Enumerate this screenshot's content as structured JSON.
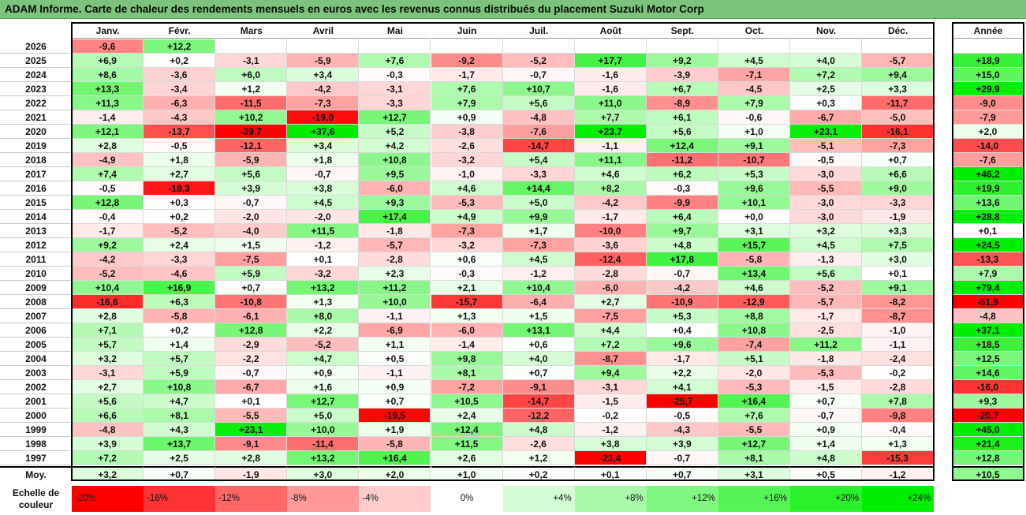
{
  "title": "ADAM Informe. Carte de chaleur des rendements mensuels en euros avec les revenus connus distribués du placement Suzuki Motor Corp",
  "chart_data": {
    "type": "heatmap",
    "months": [
      "Janv.",
      "Févr.",
      "Mars",
      "Avril",
      "Mai",
      "Juin",
      "Juil.",
      "Août",
      "Sept.",
      "Oct.",
      "Nov.",
      "Déc."
    ],
    "year_header": "Année",
    "rows": [
      {
        "year": "2026",
        "values": [
          "-9,6",
          "+12,2",
          null,
          null,
          null,
          null,
          null,
          null,
          null,
          null,
          null,
          null
        ],
        "annual": null
      },
      {
        "year": "2025",
        "values": [
          "+6,9",
          "+0,2",
          "-3,1",
          "-5,9",
          "+7,6",
          "-9,2",
          "-5,2",
          "+17,7",
          "+9,2",
          "+4,5",
          "+4,0",
          "-5,7"
        ],
        "annual": "+18,9"
      },
      {
        "year": "2024",
        "values": [
          "+8,6",
          "-3,6",
          "+6,0",
          "+3,4",
          "-0,3",
          "-1,7",
          "-0,7",
          "-1,6",
          "-3,9",
          "-7,1",
          "+7,2",
          "+9,4"
        ],
        "annual": "+15,0"
      },
      {
        "year": "2023",
        "values": [
          "+13,3",
          "-3,4",
          "+1,2",
          "-4,2",
          "-3,1",
          "+7,6",
          "+10,7",
          "-1,6",
          "+6,7",
          "-4,5",
          "+2,5",
          "+3,3"
        ],
        "annual": "+29,9"
      },
      {
        "year": "2022",
        "values": [
          "+11,3",
          "-6,3",
          "-11,5",
          "-7,3",
          "-3,3",
          "+7,9",
          "+5,6",
          "+11,0",
          "-8,9",
          "+7,9",
          "+0,3",
          "-11,7"
        ],
        "annual": "-9,0"
      },
      {
        "year": "2021",
        "values": [
          "-1,4",
          "-4,3",
          "+10,2",
          "-19,0",
          "+12,7",
          "+0,9",
          "-4,8",
          "+7,7",
          "+6,1",
          "-0,6",
          "-6,7",
          "-5,0"
        ],
        "annual": "-7,9"
      },
      {
        "year": "2020",
        "values": [
          "+12,1",
          "-13,7",
          "-39,7",
          "+37,6",
          "+5,2",
          "-3,8",
          "-7,6",
          "+23,7",
          "+5,6",
          "+1,0",
          "+23,1",
          "-16,1"
        ],
        "annual": "+2,0"
      },
      {
        "year": "2019",
        "values": [
          "+2,8",
          "-0,5",
          "-12,1",
          "+3,4",
          "+4,2",
          "-2,6",
          "-14,7",
          "-1,1",
          "+12,4",
          "+9,1",
          "-5,1",
          "-7,3"
        ],
        "annual": "-14,0"
      },
      {
        "year": "2018",
        "values": [
          "-4,9",
          "+1,8",
          "-5,9",
          "+1,8",
          "+10,8",
          "-3,2",
          "+5,4",
          "+11,1",
          "-11,2",
          "-10,7",
          "-0,5",
          "+0,7"
        ],
        "annual": "-7,6"
      },
      {
        "year": "2017",
        "values": [
          "+7,4",
          "+2,7",
          "+5,6",
          "-0,7",
          "+9,5",
          "-1,0",
          "-3,3",
          "+4,6",
          "+6,2",
          "+5,3",
          "-3,0",
          "+6,6"
        ],
        "annual": "+46,2"
      },
      {
        "year": "2016",
        "values": [
          "-0,5",
          "-18,3",
          "+3,9",
          "+3,8",
          "-6,0",
          "+4,6",
          "+14,4",
          "+8,2",
          "-0,3",
          "+9,6",
          "-5,5",
          "+9,0"
        ],
        "annual": "+19,9"
      },
      {
        "year": "2015",
        "values": [
          "+12,8",
          "+0,3",
          "-0,7",
          "+4,5",
          "+9,3",
          "-5,3",
          "+5,0",
          "-4,2",
          "-9,9",
          "+10,1",
          "-3,0",
          "-3,3"
        ],
        "annual": "+13,6"
      },
      {
        "year": "2014",
        "values": [
          "-0,4",
          "+0,2",
          "-2,0",
          "-2,0",
          "+17,4",
          "+4,9",
          "+9,9",
          "-1,7",
          "+6,4",
          "+0,0",
          "-3,0",
          "-1,9"
        ],
        "annual": "+28,8"
      },
      {
        "year": "2013",
        "values": [
          "-1,7",
          "-5,2",
          "-4,0",
          "+11,5",
          "-1,8",
          "-7,3",
          "+1,7",
          "-10,0",
          "+9,7",
          "+3,1",
          "+3,2",
          "+3,3"
        ],
        "annual": "+0,1"
      },
      {
        "year": "2012",
        "values": [
          "+9,2",
          "+2,4",
          "+1,5",
          "-1,2",
          "-5,7",
          "-3,2",
          "-7,3",
          "-3,6",
          "+4,8",
          "+15,7",
          "+4,5",
          "+7,5"
        ],
        "annual": "+24,5"
      },
      {
        "year": "2011",
        "values": [
          "-4,2",
          "-3,3",
          "-7,5",
          "+0,1",
          "-2,8",
          "+0,6",
          "+4,5",
          "-12,4",
          "+17,8",
          "-5,8",
          "-1,3",
          "+3,0"
        ],
        "annual": "-13,3"
      },
      {
        "year": "2010",
        "values": [
          "-5,2",
          "-4,6",
          "+5,9",
          "-3,2",
          "+2,3",
          "-0,3",
          "-1,2",
          "-2,8",
          "-0,7",
          "+13,4",
          "+5,6",
          "+0,1"
        ],
        "annual": "+7,9"
      },
      {
        "year": "2009",
        "values": [
          "+10,4",
          "+16,9",
          "+0,7",
          "+13,2",
          "+11,2",
          "+2,1",
          "+10,4",
          "-6,0",
          "-4,2",
          "+4,6",
          "-5,2",
          "+9,1"
        ],
        "annual": "+79,4"
      },
      {
        "year": "2008",
        "values": [
          "-16,6",
          "+6,3",
          "-10,8",
          "+1,3",
          "+10,0",
          "-15,7",
          "-6,4",
          "+2,7",
          "-10,9",
          "-12,9",
          "-5,7",
          "-8,2"
        ],
        "annual": "-51,9"
      },
      {
        "year": "2007",
        "values": [
          "+2,8",
          "-5,8",
          "-6,1",
          "+8,0",
          "-1,1",
          "+1,3",
          "+1,5",
          "-7,5",
          "+5,3",
          "+8,8",
          "-1,7",
          "-8,7"
        ],
        "annual": "-4,8"
      },
      {
        "year": "2006",
        "values": [
          "+7,1",
          "+0,2",
          "+12,8",
          "+2,2",
          "-6,9",
          "-6,0",
          "+13,1",
          "+4,4",
          "+0,4",
          "+10,8",
          "-2,5",
          "-1,0"
        ],
        "annual": "+37,1"
      },
      {
        "year": "2005",
        "values": [
          "+5,7",
          "+1,4",
          "-2,9",
          "-5,2",
          "+1,1",
          "-1,4",
          "+0,6",
          "+7,2",
          "+9,6",
          "-7,4",
          "+11,2",
          "-1,1"
        ],
        "annual": "+18,5"
      },
      {
        "year": "2004",
        "values": [
          "+3,2",
          "+5,7",
          "-2,2",
          "+4,7",
          "+0,5",
          "+9,8",
          "+4,0",
          "-8,7",
          "-1,7",
          "+5,1",
          "-1,8",
          "-2,4"
        ],
        "annual": "+12,5"
      },
      {
        "year": "2003",
        "values": [
          "-3,1",
          "+5,9",
          "-0,7",
          "+0,9",
          "-1,1",
          "+8,1",
          "+0,7",
          "+9,4",
          "+2,2",
          "-2,0",
          "-5,3",
          "-0,2"
        ],
        "annual": "+14,6"
      },
      {
        "year": "2002",
        "values": [
          "+2,7",
          "+10,8",
          "-6,7",
          "+1,6",
          "+0,9",
          "-7,2",
          "-9,1",
          "-3,1",
          "+4,1",
          "-5,3",
          "-1,5",
          "-2,8"
        ],
        "annual": "-16,0"
      },
      {
        "year": "2001",
        "values": [
          "+5,6",
          "+4,7",
          "+0,1",
          "+12,7",
          "+0,7",
          "+10,5",
          "-14,7",
          "-1,5",
          "-25,7",
          "+16,4",
          "+0,7",
          "+7,8"
        ],
        "annual": "+9,3"
      },
      {
        "year": "2000",
        "values": [
          "+6,6",
          "+8,1",
          "-5,5",
          "+5,0",
          "-19,5",
          "+2,4",
          "-12,2",
          "-0,2",
          "-0,5",
          "+7,6",
          "-0,7",
          "-9,8"
        ],
        "annual": "-20,7"
      },
      {
        "year": "1999",
        "values": [
          "-4,8",
          "+4,3",
          "+23,1",
          "+10,0",
          "+1,9",
          "+12,4",
          "+4,8",
          "-1,2",
          "-4,3",
          "-5,5",
          "+0,9",
          "-0,4"
        ],
        "annual": "+45,0"
      },
      {
        "year": "1998",
        "values": [
          "+3,9",
          "+13,7",
          "-9,1",
          "-11,4",
          "-5,8",
          "+11,5",
          "-2,6",
          "+3,8",
          "+3,9",
          "+12,7",
          "+1,4",
          "+1,3"
        ],
        "annual": "+21,4"
      },
      {
        "year": "1997",
        "values": [
          "+7,2",
          "+2,5",
          "+2,8",
          "+13,2",
          "+16,4",
          "+2,6",
          "+1,2",
          "-23,4",
          "-0,7",
          "+8,1",
          "+4,8",
          "-15,3"
        ],
        "annual": "+12,8"
      }
    ],
    "average_label": "Moy.",
    "averages": [
      "+3,2",
      "+0,7",
      "-1,9",
      "+3,0",
      "+2,0",
      "+1,0",
      "+0,2",
      "+0,1",
      "+0,7",
      "+3,1",
      "+0,5",
      "-1,2"
    ],
    "average_annual": "+10,5",
    "scale_label": "Echelle de couleur",
    "scale": [
      {
        "label": "-20%",
        "value": -20
      },
      {
        "label": "-16%",
        "value": -16
      },
      {
        "label": "-12%",
        "value": -12
      },
      {
        "label": "-8%",
        "value": -8
      },
      {
        "label": "-4%",
        "value": -4
      },
      {
        "label": "0%",
        "value": 0
      },
      {
        "label": "+4%",
        "value": 4
      },
      {
        "label": "+8%",
        "value": 8
      },
      {
        "label": "+12%",
        "value": 12
      },
      {
        "label": "+16%",
        "value": 16
      },
      {
        "label": "+20%",
        "value": 20
      },
      {
        "label": "+24%",
        "value": 24
      }
    ],
    "colors": {
      "negative_max": "#ff0000",
      "neutral": "#ffffff",
      "positive_max": "#00ee00",
      "title_bar": "#7cc47c"
    }
  }
}
